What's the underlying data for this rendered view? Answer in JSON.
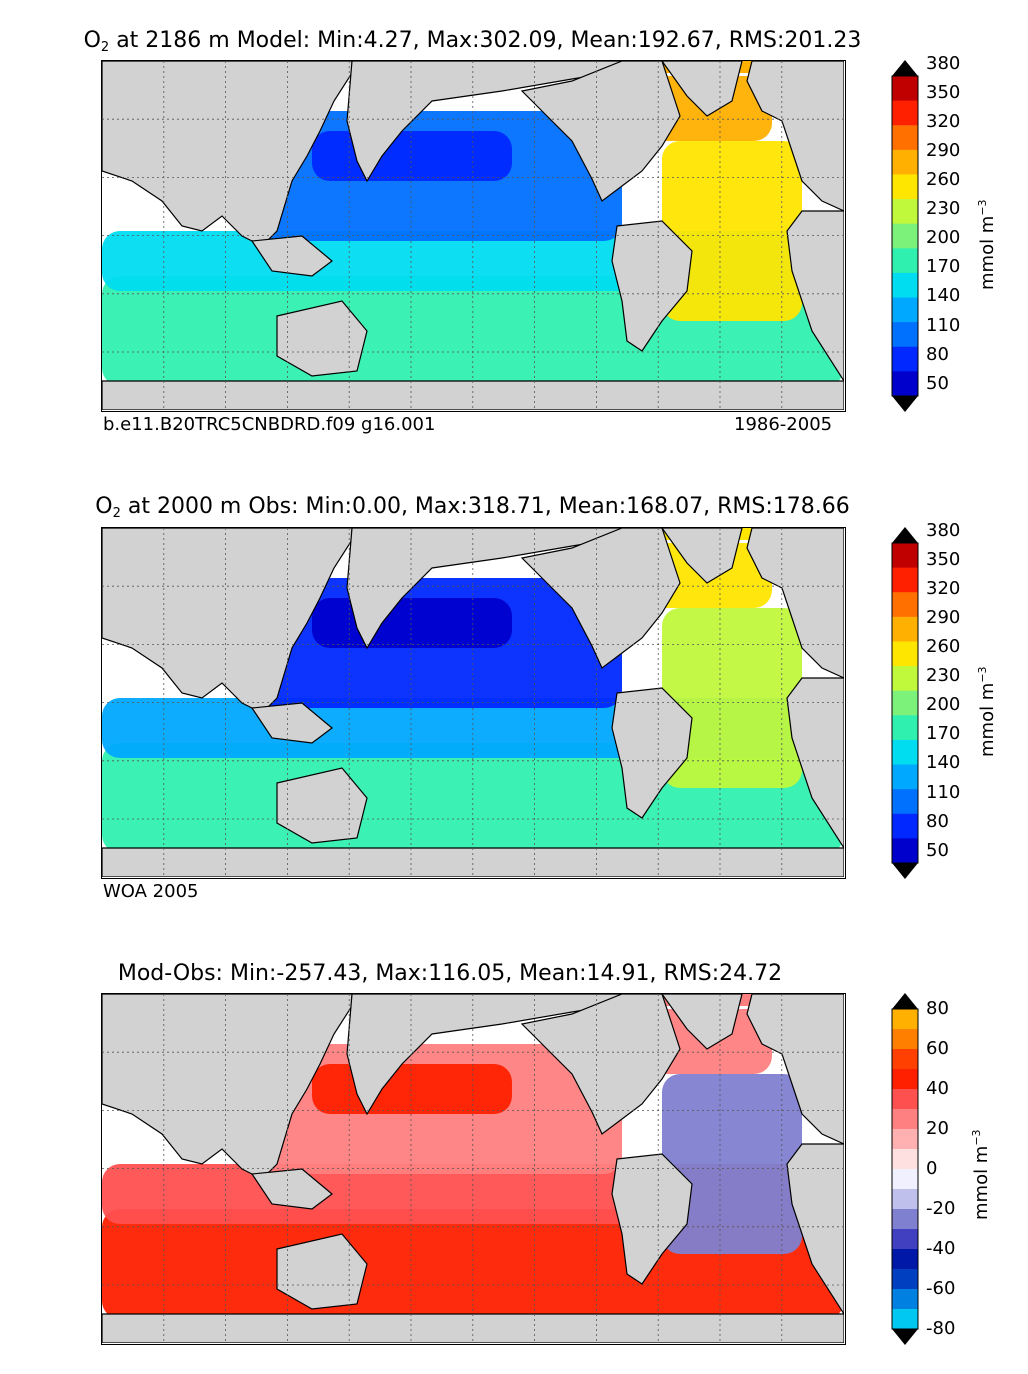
{
  "chart_data": [
    {
      "type": "heatmap",
      "title_prefix": "O",
      "title_sub": "2",
      "title_rest": " at 2186 m Model: Min:4.27, Max:302.09, Mean:192.67, RMS:201.23",
      "footer_left": "b.e11.B20TRC5CNBDRD.f09 g16.001",
      "footer_right": "1986-2005",
      "unit_base": "mmol m",
      "unit_sup": "−3",
      "levels": [
        50,
        80,
        110,
        140,
        170,
        200,
        230,
        260,
        290,
        320,
        350,
        380
      ],
      "tick_labels": [
        "380",
        "350",
        "320",
        "290",
        "260",
        "230",
        "200",
        "170",
        "140",
        "110",
        "80",
        "50"
      ],
      "colors": [
        "#000080",
        "#0000cc",
        "#0028ff",
        "#0070ff",
        "#00a8ff",
        "#00dcf0",
        "#30f0b0",
        "#7df27a",
        "#c0f83c",
        "#ffe600",
        "#ffb000",
        "#ff7000",
        "#ff2000",
        "#c00000",
        "#800000"
      ],
      "regions": [
        {
          "name": "north-pacific-core",
          "level": 110,
          "color": "#0028ff"
        },
        {
          "name": "pacific-band",
          "level": 140,
          "color": "#0070ff"
        },
        {
          "name": "equatorial-band",
          "level": 170,
          "color": "#00dcf0"
        },
        {
          "name": "southern-band",
          "level": 200,
          "color": "#30f0b0"
        },
        {
          "name": "north-atlantic",
          "level": 320,
          "color": "#ffb000"
        },
        {
          "name": "tropical-atlantic",
          "level": 290,
          "color": "#ffe600"
        }
      ]
    },
    {
      "type": "heatmap",
      "title_prefix": "O",
      "title_sub": "2",
      "title_rest": " at 2000 m Obs: Min:0.00, Max:318.71, Mean:168.07, RMS:178.66",
      "footer_left": "WOA 2005",
      "footer_right": "",
      "unit_base": "mmol m",
      "unit_sup": "−3",
      "levels": [
        50,
        80,
        110,
        140,
        170,
        200,
        230,
        260,
        290,
        320,
        350,
        380
      ],
      "tick_labels": [
        "380",
        "350",
        "320",
        "290",
        "260",
        "230",
        "200",
        "170",
        "140",
        "110",
        "80",
        "50"
      ],
      "colors": [
        "#000080",
        "#0000cc",
        "#0028ff",
        "#0070ff",
        "#00a8ff",
        "#00dcf0",
        "#30f0b0",
        "#7df27a",
        "#c0f83c",
        "#ffe600",
        "#ffb000",
        "#ff7000",
        "#ff2000",
        "#c00000",
        "#800000"
      ],
      "regions": [
        {
          "name": "north-pacific-core",
          "level": 80,
          "color": "#0000cc"
        },
        {
          "name": "pacific-band",
          "level": 110,
          "color": "#0028ff"
        },
        {
          "name": "equatorial-band",
          "level": 140,
          "color": "#00a8ff"
        },
        {
          "name": "southern-band",
          "level": 170,
          "color": "#30f0b0"
        },
        {
          "name": "north-atlantic",
          "level": 290,
          "color": "#ffe600"
        },
        {
          "name": "tropical-atlantic",
          "level": 260,
          "color": "#c0f83c"
        }
      ]
    },
    {
      "type": "heatmap",
      "title_prefix": "",
      "title_sub": "",
      "title_rest": "Mod-Obs: Min:-257.43, Max:116.05, Mean:14.91, RMS:24.72",
      "footer_left": "",
      "footer_right": "",
      "unit_base": "mmol m",
      "unit_sup": "−3",
      "levels": [
        -80,
        -70,
        -60,
        -50,
        -40,
        -30,
        -20,
        -10,
        0,
        10,
        20,
        30,
        40,
        50,
        60,
        70,
        80
      ],
      "tick_labels": [
        "80",
        "60",
        "40",
        "20",
        "0",
        "-20",
        "-40",
        "-60",
        "-80"
      ],
      "colors": [
        "#00ffff",
        "#00c8f0",
        "#0080e0",
        "#0040c0",
        "#0018a8",
        "#4040c0",
        "#8080d0",
        "#c0c0ec",
        "#f0f0ff",
        "#ffe0e0",
        "#ffb0b0",
        "#ff8080",
        "#ff5050",
        "#ff2000",
        "#ff4000",
        "#ff8000",
        "#ffb000",
        "#ffff00"
      ],
      "regions": [
        {
          "name": "north-pacific-core",
          "level": 40,
          "color": "#ff2000"
        },
        {
          "name": "pacific-band",
          "level": 20,
          "color": "#ff8080"
        },
        {
          "name": "equatorial-band",
          "level": 30,
          "color": "#ff5050"
        },
        {
          "name": "southern-band",
          "level": 40,
          "color": "#ff2000"
        },
        {
          "name": "north-atlantic",
          "level": 20,
          "color": "#ff8080"
        },
        {
          "name": "antarctic-margin",
          "level": -20,
          "color": "#8080d0"
        }
      ]
    }
  ]
}
